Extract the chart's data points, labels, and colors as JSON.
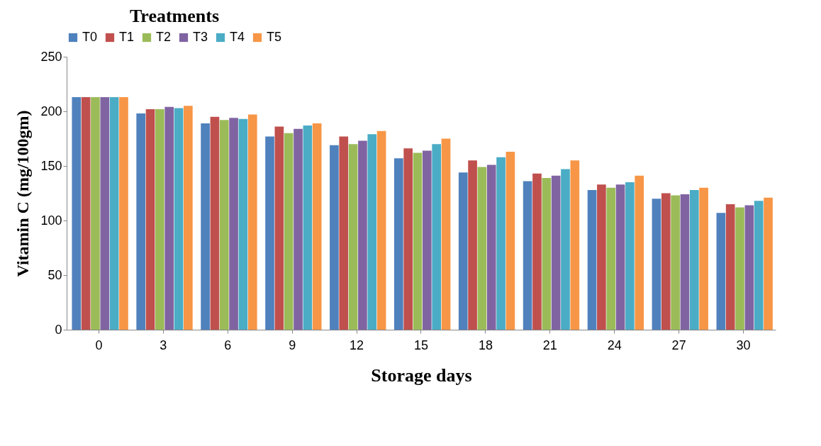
{
  "chart_data": {
    "type": "bar",
    "legend_title": "Treatments",
    "xlabel": "Storage days",
    "ylabel": "Vitamin  C (mg/100gm)",
    "categories": [
      "0",
      "3",
      "6",
      "9",
      "12",
      "15",
      "18",
      "21",
      "24",
      "27",
      "30"
    ],
    "ylim": [
      0,
      250
    ],
    "yticks": [
      0,
      50,
      100,
      150,
      200,
      250
    ],
    "grid": false,
    "legend": "top",
    "series": [
      {
        "name": "T0",
        "color": "#4f81bd",
        "values": [
          213,
          198,
          189,
          177,
          169,
          157,
          144,
          136,
          128,
          120,
          107
        ]
      },
      {
        "name": "T1",
        "color": "#c0504d",
        "values": [
          213,
          202,
          195,
          186,
          177,
          166,
          155,
          143,
          133,
          125,
          115
        ]
      },
      {
        "name": "T2",
        "color": "#9bbb59",
        "values": [
          213,
          202,
          192,
          180,
          170,
          162,
          149,
          139,
          130,
          123,
          112
        ]
      },
      {
        "name": "T3",
        "color": "#8064a2",
        "values": [
          213,
          204,
          194,
          184,
          173,
          164,
          151,
          141,
          133,
          124,
          114
        ]
      },
      {
        "name": "T4",
        "color": "#4bacc6",
        "values": [
          213,
          203,
          193,
          187,
          179,
          170,
          158,
          147,
          135,
          128,
          118
        ]
      },
      {
        "name": "T5",
        "color": "#f79646",
        "values": [
          213,
          205,
          197,
          189,
          182,
          175,
          163,
          155,
          141,
          130,
          121
        ]
      }
    ]
  }
}
